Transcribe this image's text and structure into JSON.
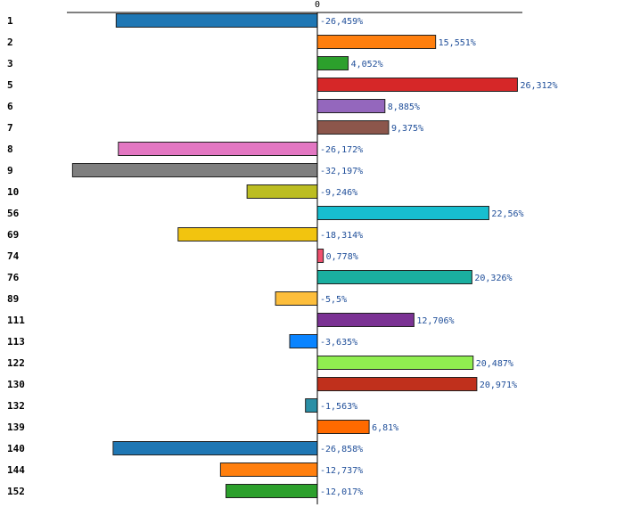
{
  "chart_data": {
    "type": "bar",
    "orientation": "horizontal",
    "zero_label": "0",
    "xlim": [
      -36,
      30
    ],
    "categories": [
      "1",
      "2",
      "3",
      "5",
      "6",
      "7",
      "8",
      "9",
      "10",
      "56",
      "69",
      "74",
      "76",
      "89",
      "111",
      "113",
      "122",
      "130",
      "132",
      "139",
      "140",
      "144",
      "152"
    ],
    "values": [
      -26.459,
      15.551,
      4.052,
      26.312,
      8.885,
      9.375,
      -26.172,
      -32.197,
      -9.246,
      22.56,
      -18.314,
      0.778,
      20.326,
      -5.5,
      12.706,
      -3.635,
      20.487,
      20.971,
      -1.563,
      6.81,
      -26.858,
      -12.737,
      -12.017
    ],
    "value_labels": [
      "-26,459%",
      "15,551%",
      "4,052%",
      "26,312%",
      "8,885%",
      "9,375%",
      "-26,172%",
      "-32,197%",
      "-9,246%",
      "22,56%",
      "-18,314%",
      "0,778%",
      "20,326%",
      "-5,5%",
      "12,706%",
      "-3,635%",
      "20,487%",
      "20,971%",
      "-1,563%",
      "6,81%",
      "-26,858%",
      "-12,737%",
      "-12,017%"
    ],
    "colors": [
      "#1f77b4",
      "#ff7f0e",
      "#2ca02c",
      "#d62728",
      "#9467bd",
      "#8c564b",
      "#e377c2",
      "#7f7f7f",
      "#bcbd22",
      "#17becf",
      "#f2c40f",
      "#f0506e",
      "#1aafa0",
      "#fdbe3c",
      "#7b3294",
      "#0a84ff",
      "#90ee50",
      "#c0301c",
      "#2a8fa6",
      "#ff6a00",
      "#1f77b4",
      "#ff7f0e",
      "#2ca02c"
    ],
    "legend": "none",
    "grid": false
  }
}
